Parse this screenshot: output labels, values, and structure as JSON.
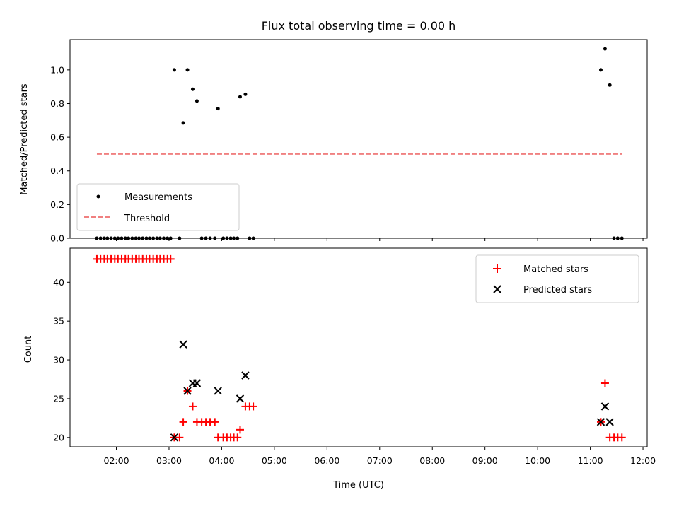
{
  "chart_data": [
    {
      "type": "scatter",
      "title": "Flux total observing time = 0.00 h",
      "xlabel": "",
      "ylabel": "Matched/Predicted stars",
      "xlim_hours": [
        1.12,
        12.08
      ],
      "ylim": [
        0,
        1.18
      ],
      "yticks": [
        0.0,
        0.2,
        0.4,
        0.6,
        0.8,
        1.0
      ],
      "ytick_labels": [
        "0.0",
        "0.2",
        "0.4",
        "0.6",
        "0.8",
        "1.0"
      ],
      "grid": false,
      "legend": {
        "position": "lower-left",
        "entries": [
          "Measurements",
          "Threshold"
        ]
      },
      "series": [
        {
          "name": "Measurements",
          "style": "dot",
          "color": "#000000",
          "points": [
            [
              1.63,
              0
            ],
            [
              1.7,
              0
            ],
            [
              1.77,
              0
            ],
            [
              1.83,
              0
            ],
            [
              1.9,
              0
            ],
            [
              1.97,
              0
            ],
            [
              2.03,
              0
            ],
            [
              2.1,
              0
            ],
            [
              2.17,
              0
            ],
            [
              2.23,
              0
            ],
            [
              2.3,
              0
            ],
            [
              2.37,
              0
            ],
            [
              2.43,
              0
            ],
            [
              2.5,
              0
            ],
            [
              2.57,
              0
            ],
            [
              2.63,
              0
            ],
            [
              2.7,
              0
            ],
            [
              2.77,
              0
            ],
            [
              2.83,
              0
            ],
            [
              2.9,
              0
            ],
            [
              2.97,
              0
            ],
            [
              3.03,
              0
            ],
            [
              3.1,
              1.0
            ],
            [
              3.2,
              0
            ],
            [
              3.27,
              0.685
            ],
            [
              3.35,
              1.0
            ],
            [
              3.45,
              0.885
            ],
            [
              3.53,
              0.815
            ],
            [
              3.62,
              0
            ],
            [
              3.7,
              0
            ],
            [
              3.78,
              0
            ],
            [
              3.87,
              0
            ],
            [
              3.93,
              0.77
            ],
            [
              4.03,
              0
            ],
            [
              4.1,
              0
            ],
            [
              4.17,
              0
            ],
            [
              4.23,
              0
            ],
            [
              4.3,
              0
            ],
            [
              4.35,
              0.84
            ],
            [
              4.45,
              0.855
            ],
            [
              4.53,
              0
            ],
            [
              4.6,
              0
            ],
            [
              11.2,
              1.0
            ],
            [
              11.28,
              1.125
            ],
            [
              11.37,
              0.91
            ],
            [
              11.45,
              0
            ],
            [
              11.52,
              0
            ],
            [
              11.6,
              0
            ]
          ]
        },
        {
          "name": "Threshold",
          "style": "dashed-line",
          "color": "#f08080",
          "x": [
            1.63,
            11.6
          ],
          "y": [
            0.5,
            0.5
          ]
        }
      ]
    },
    {
      "type": "scatter",
      "title": "",
      "xlabel": "Time (UTC)",
      "ylabel": "Count",
      "xlim_hours": [
        1.12,
        12.08
      ],
      "ylim": [
        18.8,
        44.4
      ],
      "yticks": [
        20,
        25,
        30,
        35,
        40
      ],
      "ytick_labels": [
        "20",
        "25",
        "30",
        "35",
        "40"
      ],
      "xticks_hours": [
        2,
        3,
        4,
        5,
        6,
        7,
        8,
        9,
        10,
        11,
        12
      ],
      "xtick_labels": [
        "02:00",
        "03:00",
        "04:00",
        "05:00",
        "06:00",
        "07:00",
        "08:00",
        "09:00",
        "10:00",
        "11:00",
        "12:00"
      ],
      "grid": false,
      "legend": {
        "position": "top-right",
        "entries": [
          "Matched stars",
          "Predicted stars"
        ]
      },
      "series": [
        {
          "name": "Matched stars",
          "marker": "plus",
          "color": "#ff0000",
          "points": [
            [
              1.63,
              43
            ],
            [
              1.7,
              43
            ],
            [
              1.77,
              43
            ],
            [
              1.83,
              43
            ],
            [
              1.9,
              43
            ],
            [
              1.97,
              43
            ],
            [
              2.03,
              43
            ],
            [
              2.1,
              43
            ],
            [
              2.17,
              43
            ],
            [
              2.23,
              43
            ],
            [
              2.3,
              43
            ],
            [
              2.37,
              43
            ],
            [
              2.43,
              43
            ],
            [
              2.5,
              43
            ],
            [
              2.57,
              43
            ],
            [
              2.63,
              43
            ],
            [
              2.7,
              43
            ],
            [
              2.77,
              43
            ],
            [
              2.83,
              43
            ],
            [
              2.9,
              43
            ],
            [
              2.97,
              43
            ],
            [
              3.03,
              43
            ],
            [
              3.1,
              20
            ],
            [
              3.2,
              20
            ],
            [
              3.27,
              22
            ],
            [
              3.35,
              26
            ],
            [
              3.45,
              24
            ],
            [
              3.53,
              22
            ],
            [
              3.62,
              22
            ],
            [
              3.7,
              22
            ],
            [
              3.78,
              22
            ],
            [
              3.87,
              22
            ],
            [
              3.93,
              20
            ],
            [
              4.03,
              20
            ],
            [
              4.1,
              20
            ],
            [
              4.17,
              20
            ],
            [
              4.23,
              20
            ],
            [
              4.3,
              20
            ],
            [
              4.35,
              21
            ],
            [
              4.45,
              24
            ],
            [
              4.53,
              24
            ],
            [
              4.6,
              24
            ],
            [
              11.2,
              22
            ],
            [
              11.28,
              27
            ],
            [
              11.37,
              20
            ],
            [
              11.45,
              20
            ],
            [
              11.52,
              20
            ],
            [
              11.6,
              20
            ]
          ]
        },
        {
          "name": "Predicted stars",
          "marker": "x",
          "color": "#000000",
          "points": [
            [
              3.1,
              20
            ],
            [
              3.27,
              32
            ],
            [
              3.35,
              26
            ],
            [
              3.45,
              27
            ],
            [
              3.53,
              27
            ],
            [
              3.93,
              26
            ],
            [
              4.35,
              25
            ],
            [
              4.45,
              28
            ],
            [
              11.2,
              22
            ],
            [
              11.28,
              24
            ],
            [
              11.37,
              22
            ]
          ]
        }
      ]
    }
  ]
}
